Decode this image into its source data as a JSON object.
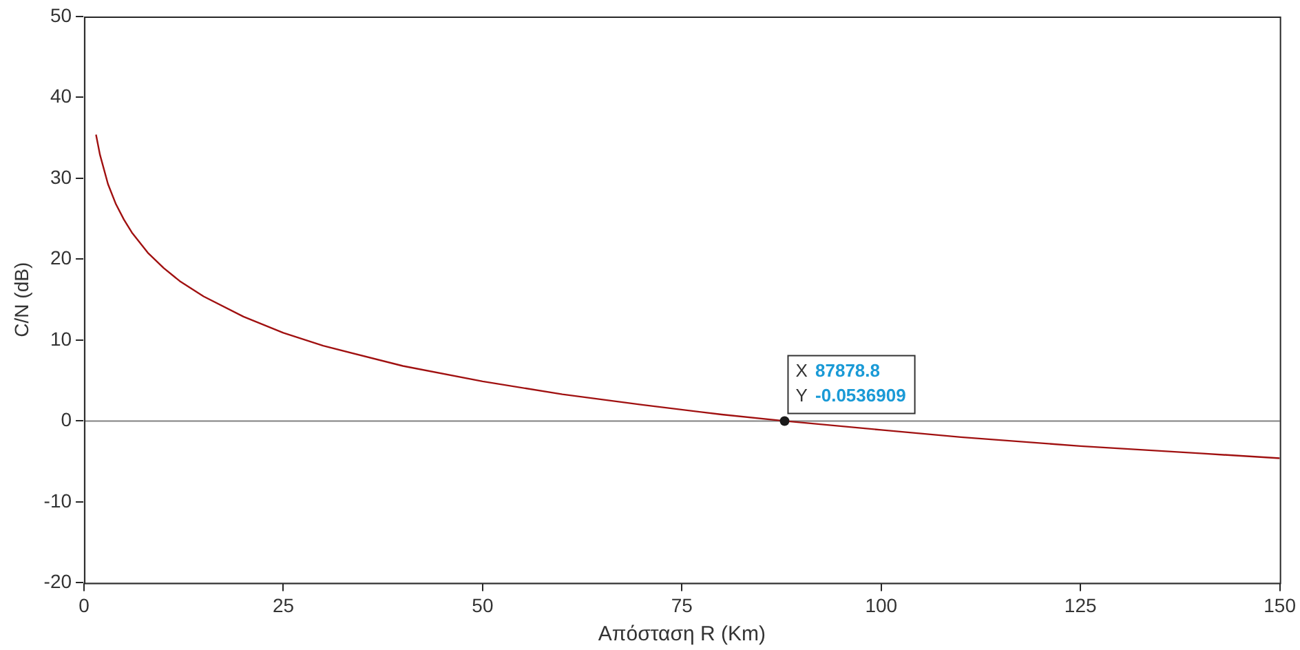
{
  "chart_data": {
    "type": "line",
    "xlabel": "Απόσταση R (Km)",
    "ylabel": "C/N (dB)",
    "x": [
      1.5,
      2,
      3,
      4,
      5,
      6,
      8,
      10,
      12,
      15,
      20,
      25,
      30,
      40,
      50,
      60,
      70,
      80,
      87.88,
      100,
      110,
      125,
      140,
      150
    ],
    "series": [
      {
        "color": "#a01010",
        "values": [
          35.4,
          32.9,
          29.3,
          26.8,
          24.9,
          23.3,
          20.8,
          18.9,
          17.3,
          15.4,
          12.9,
          10.9,
          9.3,
          6.8,
          4.9,
          3.3,
          2.0,
          0.8,
          0,
          -1.1,
          -2.0,
          -3.1,
          -4.0,
          -4.6
        ]
      }
    ],
    "xlim": [
      0,
      150
    ],
    "xticks": [
      0,
      25,
      50,
      75,
      100,
      125,
      150
    ],
    "ylim": [
      -20,
      50
    ],
    "yticks": [
      -20,
      -10,
      0,
      10,
      20,
      30,
      40,
      50
    ],
    "grid": false,
    "legend": false,
    "marker": "none",
    "line_style": "solid",
    "ref_lines": [
      {
        "axis": "y",
        "value": 0,
        "color": "#808080"
      }
    ],
    "annotations": [
      {
        "text": "X 87878.8\nY -0.0536909",
        "x": 87.88,
        "y": 0
      }
    ]
  }
}
